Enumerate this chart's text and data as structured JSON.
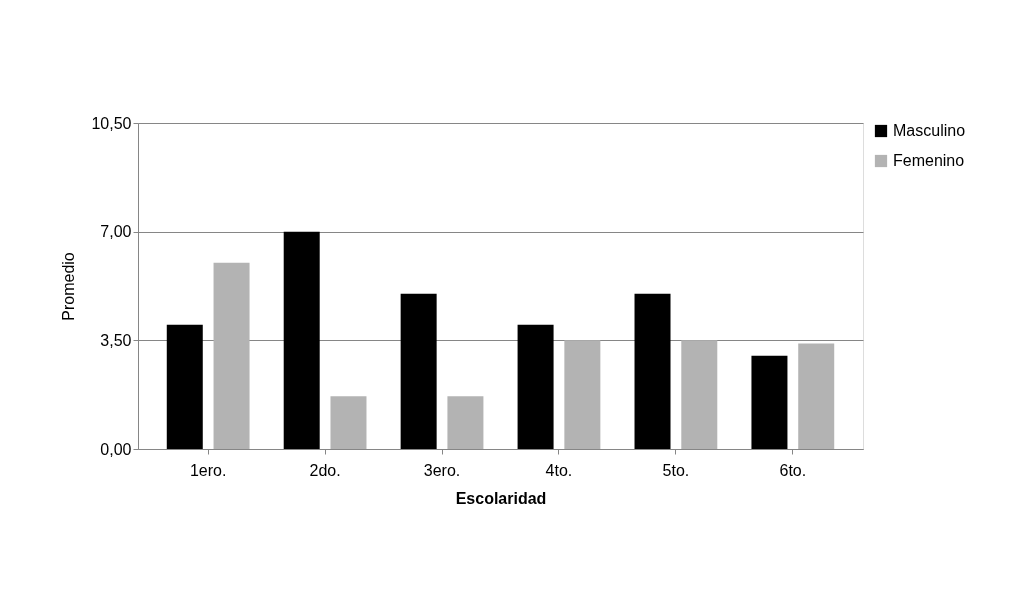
{
  "chart_data": {
    "type": "bar",
    "xlabel": "Escolaridad",
    "ylabel": "Promedio",
    "categories": [
      "1ero.",
      "2do.",
      "3ero.",
      "4to.",
      "5to.",
      "6to."
    ],
    "series": [
      {
        "name": "Masculino",
        "color": "#000000",
        "values": [
          4.0,
          7.0,
          5.0,
          4.0,
          5.0,
          3.0
        ]
      },
      {
        "name": "Femenino",
        "color": "#b3b3b3",
        "values": [
          6.0,
          1.7,
          1.7,
          3.5,
          3.5,
          3.4
        ]
      }
    ],
    "ylim": [
      0,
      10.5
    ],
    "yticks": [
      {
        "value": 0,
        "label": "0,00"
      },
      {
        "value": 3.5,
        "label": "3,50"
      },
      {
        "value": 7,
        "label": "7,00"
      },
      {
        "value": 10.5,
        "label": "10,50"
      }
    ],
    "grid": "y",
    "legend": "right"
  }
}
